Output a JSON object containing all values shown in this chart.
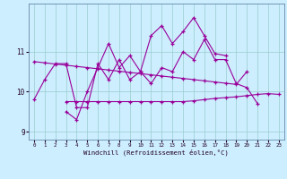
{
  "xlabel": "Windchill (Refroidissement éolien,°C)",
  "background_color": "#cceeff",
  "line_color": "#990099",
  "grid_color": "#99cccc",
  "x_values": [
    0,
    1,
    2,
    3,
    4,
    5,
    6,
    7,
    8,
    9,
    10,
    11,
    12,
    13,
    14,
    15,
    16,
    17,
    18,
    19,
    20,
    21,
    22,
    23
  ],
  "line1": [
    9.8,
    10.3,
    10.7,
    10.7,
    9.6,
    9.6,
    10.7,
    10.3,
    10.8,
    10.3,
    10.5,
    10.2,
    10.6,
    10.5,
    11.0,
    10.8,
    11.3,
    10.8,
    10.8,
    10.2,
    10.1,
    9.7,
    null,
    null
  ],
  "line2": [
    null,
    null,
    null,
    9.5,
    9.3,
    10.0,
    10.6,
    11.2,
    10.6,
    10.9,
    10.5,
    11.4,
    11.65,
    11.2,
    11.5,
    11.85,
    11.4,
    10.95,
    10.9,
    null,
    null,
    null,
    null,
    null
  ],
  "line3": [
    10.75,
    10.72,
    10.69,
    10.66,
    10.63,
    10.6,
    10.57,
    10.54,
    10.51,
    10.48,
    10.45,
    10.42,
    10.39,
    10.36,
    10.33,
    10.3,
    10.27,
    10.24,
    10.21,
    10.18,
    10.5,
    null,
    null,
    null
  ],
  "line4": [
    null,
    null,
    null,
    9.75,
    9.75,
    9.75,
    9.75,
    9.75,
    9.75,
    9.75,
    9.75,
    9.75,
    9.75,
    9.75,
    9.75,
    9.77,
    9.8,
    9.83,
    9.85,
    9.87,
    9.9,
    9.93,
    9.95,
    9.93
  ],
  "ylim": [
    8.8,
    12.2
  ],
  "xlim": [
    -0.5,
    23.5
  ],
  "yticks": [
    9,
    10,
    11
  ],
  "xticks": [
    0,
    1,
    2,
    3,
    4,
    5,
    6,
    7,
    8,
    9,
    10,
    11,
    12,
    13,
    14,
    15,
    16,
    17,
    18,
    19,
    20,
    21,
    22,
    23
  ],
  "figsize": [
    3.2,
    2.0
  ],
  "dpi": 100
}
